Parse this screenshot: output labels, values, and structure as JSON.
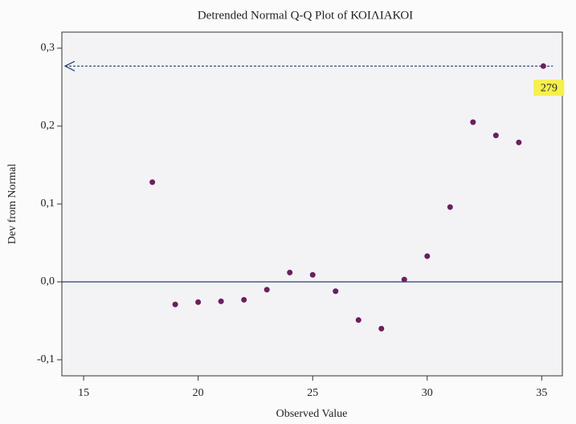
{
  "chart_data": {
    "type": "scatter",
    "title": "Detrended Normal Q-Q Plot of ΚΟΙΛΙΑΚΟΙ",
    "x_label": "Observed Value",
    "y_label": "Dev from Normal",
    "series": [
      {
        "name": "ΚΟΙΛΙΑΚΟΙ",
        "color": "#6b1f5e",
        "x": [
          18,
          19,
          20,
          21,
          22,
          23,
          24,
          25,
          26,
          27,
          28,
          29,
          30,
          31,
          32,
          33,
          34,
          35.07
        ],
        "values": [
          0.128,
          -0.029,
          -0.026,
          -0.025,
          -0.023,
          -0.01,
          0.012,
          0.009,
          -0.012,
          -0.049,
          -0.06,
          0.003,
          0.033,
          0.096,
          0.205,
          0.188,
          0.179,
          0.277
        ]
      }
    ],
    "reference_line": {
      "y": 0,
      "color": "#23406e"
    },
    "annotation": {
      "text": "279",
      "x": 35.07,
      "y": 0.277
    },
    "xlim": [
      14.05,
      35.9
    ],
    "ylim": [
      -0.1206,
      0.3206
    ],
    "xticks": [
      15,
      20,
      25,
      30,
      35
    ],
    "yticks": [
      {
        "value": -0.1,
        "label": "-0,1"
      },
      {
        "value": 0.0,
        "label": "0,0"
      },
      {
        "value": 0.1,
        "label": "0,1"
      },
      {
        "value": 0.2,
        "label": "0,2"
      },
      {
        "value": 0.3,
        "label": "0,3"
      }
    ],
    "grid": false
  }
}
